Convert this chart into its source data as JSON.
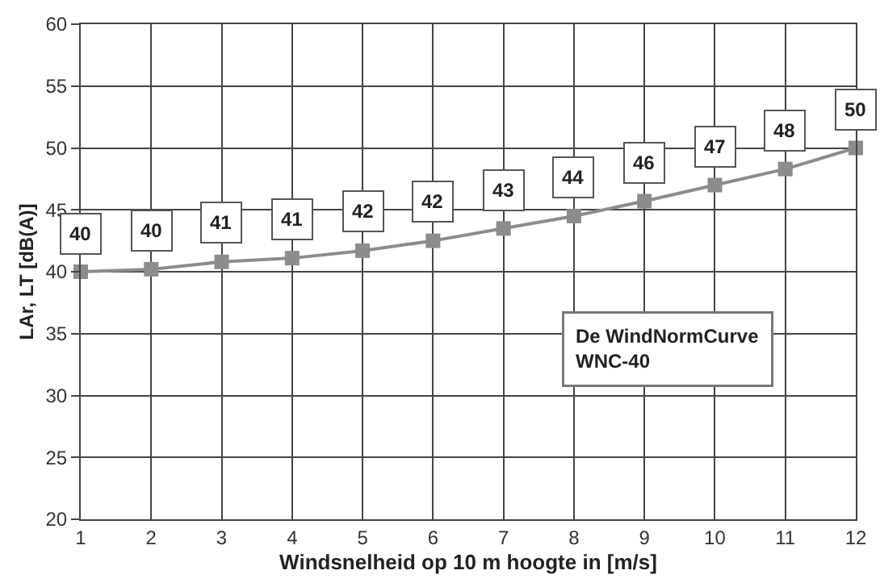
{
  "chart_data": {
    "type": "line",
    "xlabel": "Windsnelheid op 10 m hoogte in [m/s]",
    "ylabel": "LAr, LT [dB(A)]",
    "x": [
      1,
      2,
      3,
      4,
      5,
      6,
      7,
      8,
      9,
      10,
      11,
      12
    ],
    "series": [
      {
        "color": "#8c8c8c",
        "values": [
          40,
          40.2,
          40.8,
          41.1,
          41.7,
          42.5,
          43.5,
          44.5,
          45.7,
          47,
          48.3,
          50
        ],
        "value_labels": [
          "40",
          "40",
          "41",
          "41",
          "42",
          "42",
          "43",
          "44",
          "46",
          "47",
          "48",
          "50"
        ]
      }
    ],
    "xlim": [
      1,
      12
    ],
    "xticks": [
      1,
      2,
      3,
      4,
      5,
      6,
      7,
      8,
      9,
      10,
      11,
      12
    ],
    "ylim": [
      20,
      60
    ],
    "yticks": [
      20,
      25,
      30,
      35,
      40,
      45,
      50,
      55,
      60
    ],
    "grid": true,
    "marker": "square",
    "line_style": "solid",
    "legend": false,
    "annotations": [
      "De WindNormCurve\nWNC-40"
    ]
  }
}
